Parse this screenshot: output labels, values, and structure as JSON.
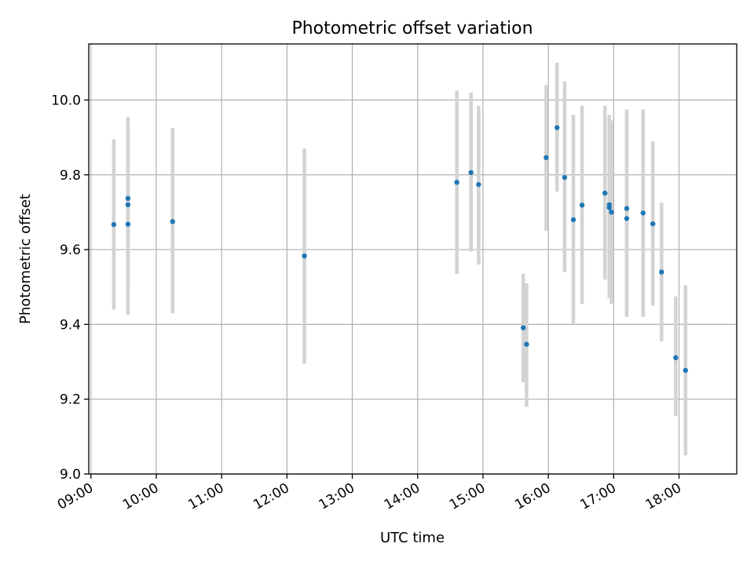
{
  "chart_data": {
    "type": "scatter",
    "title": "Photometric offset variation",
    "xlabel": "UTC time",
    "ylabel": "Photometric offset",
    "xlim": [
      "08:58",
      "18:53"
    ],
    "ylim": [
      9.0,
      10.15
    ],
    "x_ticks": [
      "09:00",
      "10:00",
      "11:00",
      "12:00",
      "13:00",
      "14:00",
      "15:00",
      "16:00",
      "17:00",
      "18:00"
    ],
    "y_ticks": [
      9.0,
      9.2,
      9.4,
      9.6,
      9.8,
      10.0
    ],
    "grid": true,
    "colors": {
      "marker": "#1f77b4",
      "errorbar": "#d3d3d3"
    },
    "points": [
      {
        "x": "09:21",
        "y": 9.667,
        "ylow": 9.44,
        "yhigh": 9.895
      },
      {
        "x": "09:34",
        "y": 9.737,
        "ylow": 9.52,
        "yhigh": 9.955
      },
      {
        "x": "09:34",
        "y": 9.72,
        "ylow": 9.5,
        "yhigh": 9.92
      },
      {
        "x": "09:34",
        "y": 9.668,
        "ylow": 9.425,
        "yhigh": 9.91
      },
      {
        "x": "10:15",
        "y": 9.675,
        "ylow": 9.43,
        "yhigh": 9.925
      },
      {
        "x": "12:16",
        "y": 9.583,
        "ylow": 9.295,
        "yhigh": 9.87
      },
      {
        "x": "14:36",
        "y": 9.78,
        "ylow": 9.535,
        "yhigh": 10.025
      },
      {
        "x": "14:49",
        "y": 9.806,
        "ylow": 9.595,
        "yhigh": 10.02
      },
      {
        "x": "14:56",
        "y": 9.774,
        "ylow": 9.56,
        "yhigh": 9.985
      },
      {
        "x": "15:37",
        "y": 9.391,
        "ylow": 9.245,
        "yhigh": 9.535
      },
      {
        "x": "15:40",
        "y": 9.347,
        "ylow": 9.18,
        "yhigh": 9.51
      },
      {
        "x": "15:58",
        "y": 9.846,
        "ylow": 9.65,
        "yhigh": 10.04
      },
      {
        "x": "16:08",
        "y": 9.926,
        "ylow": 9.755,
        "yhigh": 10.1
      },
      {
        "x": "16:15",
        "y": 9.793,
        "ylow": 9.54,
        "yhigh": 10.05
      },
      {
        "x": "16:23",
        "y": 9.68,
        "ylow": 9.4,
        "yhigh": 9.96
      },
      {
        "x": "16:31",
        "y": 9.719,
        "ylow": 9.455,
        "yhigh": 9.985
      },
      {
        "x": "16:52",
        "y": 9.751,
        "ylow": 9.52,
        "yhigh": 9.985
      },
      {
        "x": "16:56",
        "y": 9.72,
        "ylow": 9.48,
        "yhigh": 9.96
      },
      {
        "x": "16:56",
        "y": 9.712,
        "ylow": 9.47,
        "yhigh": 9.955
      },
      {
        "x": "16:58",
        "y": 9.7,
        "ylow": 9.455,
        "yhigh": 9.945
      },
      {
        "x": "17:12",
        "y": 9.71,
        "ylow": 9.445,
        "yhigh": 9.975
      },
      {
        "x": "17:12",
        "y": 9.683,
        "ylow": 9.42,
        "yhigh": 9.95
      },
      {
        "x": "17:27",
        "y": 9.698,
        "ylow": 9.42,
        "yhigh": 9.975
      },
      {
        "x": "17:36",
        "y": 9.669,
        "ylow": 9.45,
        "yhigh": 9.89
      },
      {
        "x": "17:44",
        "y": 9.54,
        "ylow": 9.355,
        "yhigh": 9.725
      },
      {
        "x": "17:57",
        "y": 9.311,
        "ylow": 9.155,
        "yhigh": 9.475
      },
      {
        "x": "18:06",
        "y": 9.277,
        "ylow": 9.05,
        "yhigh": 9.505
      }
    ]
  }
}
